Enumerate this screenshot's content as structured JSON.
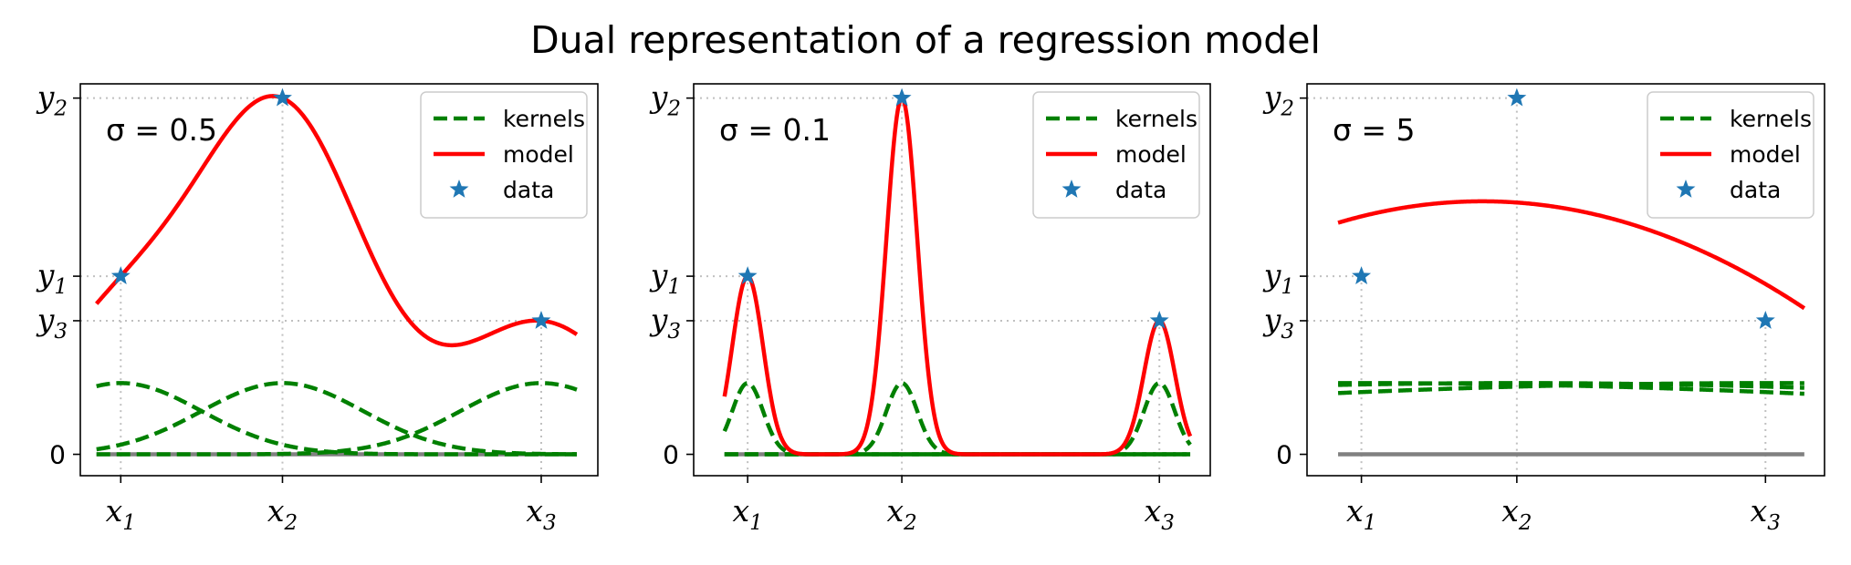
{
  "figure": {
    "title": "Dual representation of a regression model"
  },
  "chart_data": [
    {
      "type": "line",
      "annotation": "σ = 0.5",
      "sigma": 0.5,
      "xlim": [
        -0.25,
        2.95
      ],
      "ylim": [
        -0.12,
        2.08
      ],
      "x_ticks": [
        {
          "base": "x",
          "sub": "1",
          "value": 0.0
        },
        {
          "base": "x",
          "sub": "2",
          "value": 1.0
        },
        {
          "base": "x",
          "sub": "3",
          "value": 2.6
        }
      ],
      "y_ticks": [
        {
          "base": "0",
          "sub": "",
          "value": 0.0
        },
        {
          "base": "y",
          "sub": "2",
          "value": 2.0
        },
        {
          "base": "y",
          "sub": "1",
          "value": 1.0
        },
        {
          "base": "y",
          "sub": "3",
          "value": 0.75
        }
      ],
      "data_x": [
        0.0,
        1.0,
        2.6
      ],
      "data_y": [
        1.0,
        2.0,
        0.75
      ],
      "kernel_amplitude": 0.4,
      "series": [
        {
          "name": "kernels",
          "style": "dashed",
          "color": "#008000"
        },
        {
          "name": "model",
          "style": "solid",
          "color": "#ff0000"
        },
        {
          "name": "data",
          "style": "star",
          "color": "#1f77b4"
        }
      ],
      "grid": false,
      "legend": "top-right"
    },
    {
      "type": "line",
      "annotation": "σ = 0.1",
      "sigma": 0.1,
      "xlim": [
        -0.35,
        3.0
      ],
      "ylim": [
        -0.12,
        2.08
      ],
      "x_ticks": [
        {
          "base": "x",
          "sub": "1",
          "value": 0.0
        },
        {
          "base": "x",
          "sub": "2",
          "value": 1.0
        },
        {
          "base": "x",
          "sub": "3",
          "value": 2.67
        }
      ],
      "y_ticks": [
        {
          "base": "0",
          "sub": "",
          "value": 0.0
        },
        {
          "base": "y",
          "sub": "2",
          "value": 2.0
        },
        {
          "base": "y",
          "sub": "1",
          "value": 1.0
        },
        {
          "base": "y",
          "sub": "3",
          "value": 0.75
        }
      ],
      "data_x": [
        0.0,
        1.0,
        2.67
      ],
      "data_y": [
        1.0,
        2.0,
        0.75
      ],
      "kernel_amplitude": 0.4,
      "series": [
        {
          "name": "kernels",
          "style": "dashed",
          "color": "#008000"
        },
        {
          "name": "model",
          "style": "solid",
          "color": "#ff0000"
        },
        {
          "name": "data",
          "style": "star",
          "color": "#1f77b4"
        }
      ],
      "grid": false,
      "legend": "top-right"
    },
    {
      "type": "line",
      "annotation": "σ = 5",
      "sigma": 5,
      "xlim": [
        -0.35,
        2.98
      ],
      "ylim": [
        -0.12,
        2.08
      ],
      "x_ticks": [
        {
          "base": "x",
          "sub": "1",
          "value": 0.0
        },
        {
          "base": "x",
          "sub": "2",
          "value": 1.0
        },
        {
          "base": "x",
          "sub": "3",
          "value": 2.6
        }
      ],
      "y_ticks": [
        {
          "base": "0",
          "sub": "",
          "value": 0.0
        },
        {
          "base": "y",
          "sub": "2",
          "value": 2.0
        },
        {
          "base": "y",
          "sub": "1",
          "value": 1.0
        },
        {
          "base": "y",
          "sub": "3",
          "value": 0.75
        }
      ],
      "data_x": [
        0.0,
        1.0,
        2.6
      ],
      "data_y": [
        1.0,
        2.0,
        0.75
      ],
      "kernel_amplitude": 0.4,
      "model_endpoints_y": [
        1.3,
        0.82
      ],
      "model_peak": {
        "x": 0.72,
        "y": 1.42
      },
      "series": [
        {
          "name": "kernels",
          "style": "dashed",
          "color": "#008000"
        },
        {
          "name": "model",
          "style": "solid",
          "color": "#ff0000"
        },
        {
          "name": "data",
          "style": "star",
          "color": "#1f77b4"
        }
      ],
      "grid": false,
      "legend": "top-right"
    }
  ]
}
